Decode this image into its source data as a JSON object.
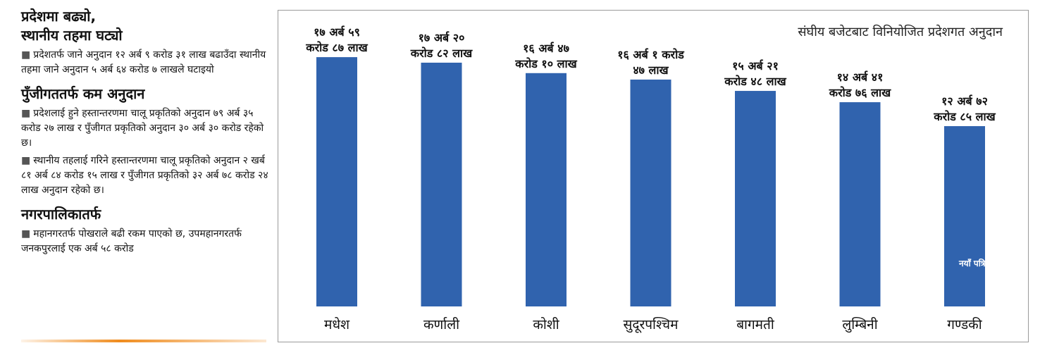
{
  "sidebar": {
    "headline_line1": "प्रदेशमा बढ्यो,",
    "headline_line2": "स्थानीय तहमा घट्यो",
    "para1": "प्रदेशतर्फ जाने अनुदान १२ अर्ब ९ करोड ३१ लाख बढाउँदा स्थानीय तहमा जाने अनुदान ५ अर्ब ६४ करोड ७ लाखले घटाइयो",
    "heading2": "पुँजीगततर्फ कम अनुदान",
    "para2": "प्रदेशलाई हुने हस्तान्तरणमा चालू प्रकृतिको अनुदान ७९ अर्ब ३५ करोड २७ लाख र पुँजीगत प्रकृतिको अनुदान ३० अर्ब ३० करोड रहेको छ।",
    "para3": "स्थानीय तहलाई गरिने हस्तान्तरणमा चालू प्रकृतिको अनुदान २ खर्ब ८१ अर्ब ८४ करोड १५ लाख र पुँजीगत प्रकृतिको ३२ अर्ब ७८ करोड २४ लाख अनुदान रहेको छ।",
    "heading3": "नगरपालिकातर्फ",
    "para4": "महानगरतर्फ पोखराले बढी रकम पाएको छ, उपमहानगरतर्फ जनकपुरलाई एक अर्ब ५८ करोड",
    "bullet_glyph": "■"
  },
  "watermark": "नयाँ पत्रिका",
  "colors": {
    "bar": "#3063ae",
    "accent_rule": "#f08c1e",
    "border": "#9a9a9a"
  },
  "chart_data": {
    "type": "bar",
    "title": "संघीय बजेटबाट विनियोजित  प्रदेशगत अनुदान",
    "unit": "अर्ब",
    "categories": [
      "मधेश",
      "कर्णाली",
      "कोशी",
      "सुदूरपश्चिम",
      "बागमती",
      "लुम्बिनी",
      "गण्डकी"
    ],
    "values": [
      17.5987,
      17.2082,
      16.471,
      16.0147,
      15.2148,
      14.4176,
      12.7285
    ],
    "value_labels": [
      [
        "१७ अर्ब ५९",
        "करोड ८७ लाख"
      ],
      [
        "१७ अर्ब २०",
        "करोड ८२ लाख"
      ],
      [
        "१६ अर्ब ४७",
        "करोड १० लाख"
      ],
      [
        "१६ अर्ब १ करोड",
        "४७ लाख"
      ],
      [
        "१५ अर्ब २१",
        "करोड ४८ लाख"
      ],
      [
        "१४ अर्ब ४१",
        "करोड ७६ लाख"
      ],
      [
        "१२ अर्ब ७२",
        "करोड ८५ लाख"
      ]
    ],
    "ylim": [
      0,
      18.4
    ],
    "grid": false,
    "legend": "none"
  }
}
